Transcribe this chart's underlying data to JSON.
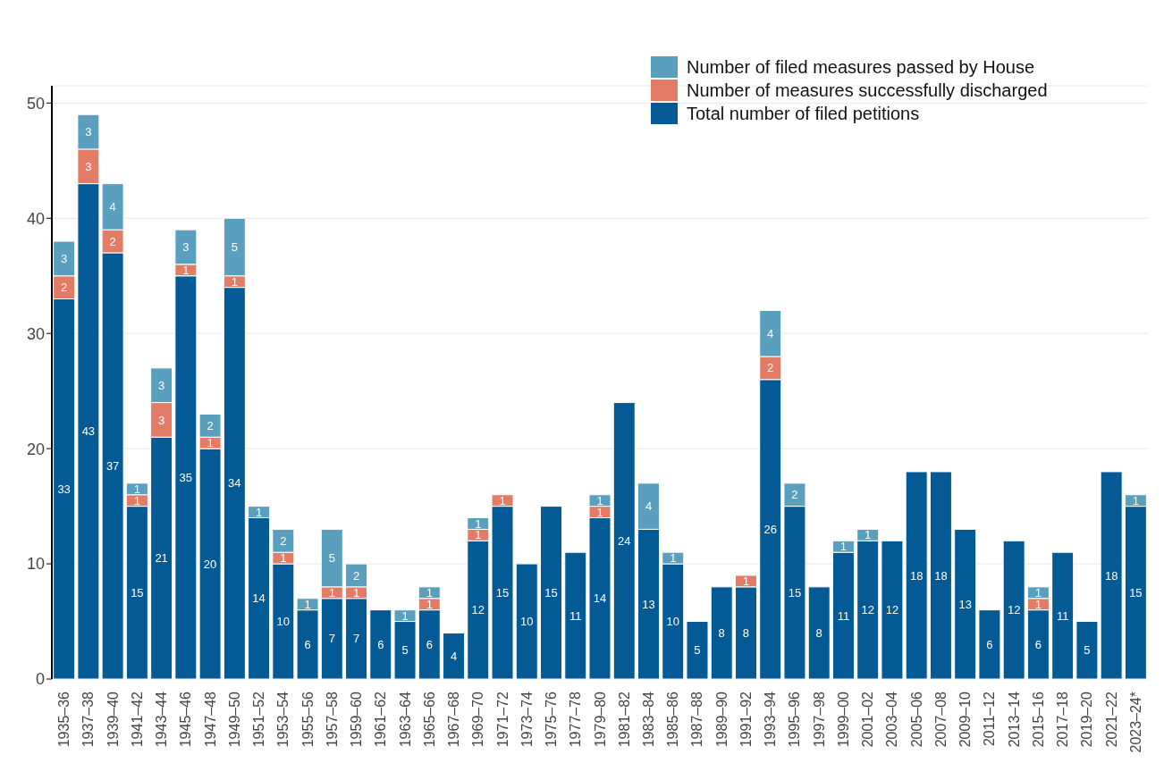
{
  "chart_data": {
    "type": "bar",
    "stacked": true,
    "data_labels": true,
    "grid": "y",
    "legend": "top right",
    "categories": [
      "1935–36",
      "1937–38",
      "1939–40",
      "1941–42",
      "1943–44",
      "1945–46",
      "1947–48",
      "1949–50",
      "1951–52",
      "1953–54",
      "1955–56",
      "1957–58",
      "1959–60",
      "1961–62",
      "1963–64",
      "1965–66",
      "1967–68",
      "1969–70",
      "1971–72",
      "1973–74",
      "1975–76",
      "1977–78",
      "1979–80",
      "1981–82",
      "1983–84",
      "1985–86",
      "1987–88",
      "1989–90",
      "1991–92",
      "1993–94",
      "1995–96",
      "1997–98",
      "1999–00",
      "2001–02",
      "2003–04",
      "2005–06",
      "2007–08",
      "2009–10",
      "2011–12",
      "2013–14",
      "2015–16",
      "2017–18",
      "2019–20",
      "2021–22",
      "2023–24*"
    ],
    "ylim": [
      0,
      51.5
    ],
    "yticks": [
      0,
      10,
      20,
      30,
      40,
      50
    ],
    "series": [
      {
        "name": "Total number of filed petitions",
        "color": "#045a94",
        "values": [
          33,
          43,
          37,
          15,
          21,
          35,
          20,
          34,
          14,
          10,
          6,
          7,
          7,
          6,
          5,
          6,
          4,
          12,
          15,
          10,
          15,
          11,
          14,
          24,
          13,
          10,
          5,
          8,
          8,
          26,
          15,
          8,
          11,
          12,
          12,
          18,
          18,
          13,
          6,
          12,
          6,
          11,
          5,
          18,
          15
        ]
      },
      {
        "name": "Number of measures successfully discharged",
        "color": "#e27c66",
        "values": [
          2,
          3,
          2,
          1,
          3,
          1,
          1,
          1,
          null,
          1,
          null,
          1,
          1,
          null,
          null,
          1,
          null,
          1,
          1,
          null,
          null,
          null,
          1,
          null,
          null,
          null,
          null,
          null,
          1,
          2,
          null,
          null,
          null,
          null,
          null,
          null,
          null,
          null,
          null,
          null,
          1,
          null,
          null,
          null,
          null
        ]
      },
      {
        "name": "Number of filed measures passed by House",
        "color": "#5b9fbf",
        "values": [
          3,
          3,
          4,
          1,
          3,
          3,
          2,
          5,
          1,
          2,
          1,
          5,
          2,
          null,
          1,
          1,
          null,
          1,
          null,
          null,
          null,
          null,
          1,
          null,
          4,
          1,
          null,
          null,
          null,
          4,
          2,
          null,
          1,
          1,
          null,
          null,
          null,
          null,
          null,
          null,
          1,
          null,
          null,
          null,
          1
        ]
      }
    ]
  }
}
